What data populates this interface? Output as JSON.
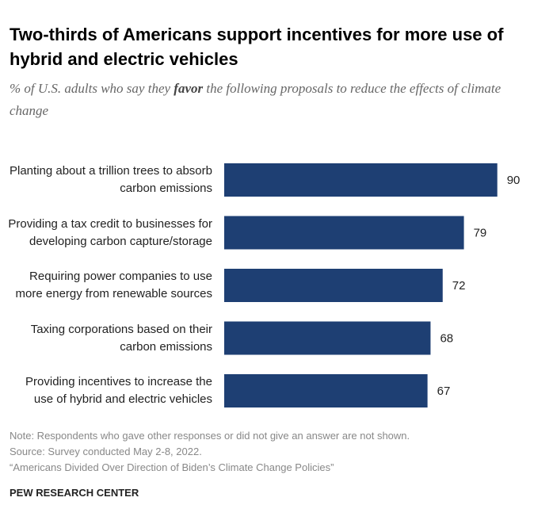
{
  "chart_data": {
    "type": "bar",
    "orientation": "horizontal",
    "title": "Two-thirds of Americans support incentives for more use of hybrid and electric vehicles",
    "subtitle": {
      "before": "% of U.S. adults who say they ",
      "emphasis": "favor",
      "after": " the following proposals to reduce the effects of climate change"
    },
    "categories": [
      "Planting about a trillion trees to absorb carbon emissions",
      "Providing a tax credit to businesses for developing carbon capture/storage",
      "Requiring power companies to use more energy from renewable sources",
      "Taxing corporations based on their carbon emissions",
      "Providing incentives to increase the use of hybrid and electric vehicles"
    ],
    "values": [
      90,
      79,
      72,
      68,
      67
    ],
    "color": "#1e3f73",
    "xlim": [
      0,
      100
    ],
    "notes": [
      "Note: Respondents who gave other responses or did not give an answer are not shown.",
      "Source: Survey conducted May 2-8, 2022.",
      "“Americans Divided Over Direction of Biden’s Climate Change Policies”"
    ],
    "source": "PEW RESEARCH CENTER"
  }
}
